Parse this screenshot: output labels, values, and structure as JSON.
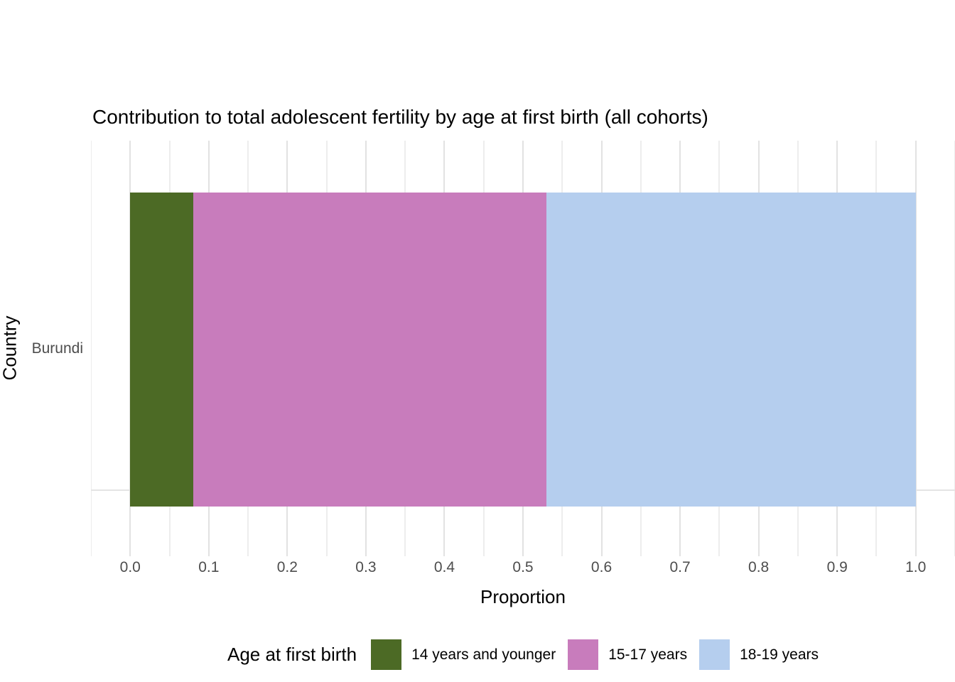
{
  "chart_data": {
    "type": "bar",
    "orientation": "horizontal",
    "stacked": true,
    "title": "Contribution to total adolescent fertility by age at first birth (all cohorts)",
    "xlabel": "Proportion",
    "ylabel": "Country",
    "categories": [
      "Burundi"
    ],
    "series": [
      {
        "name": "14 years and younger",
        "values": [
          0.08
        ],
        "color": "#4C6A25"
      },
      {
        "name": "15-17 years",
        "values": [
          0.45
        ],
        "color": "#C87CBC"
      },
      {
        "name": "18-19 years",
        "values": [
          0.47
        ],
        "color": "#B5CEEE"
      }
    ],
    "xlim": [
      -0.05,
      1.05
    ],
    "x_tick_values": [
      0.0,
      0.1,
      0.2,
      0.3,
      0.4,
      0.5,
      0.6,
      0.7,
      0.8,
      0.9,
      1.0
    ],
    "x_tick_labels": [
      "0.0",
      "0.1",
      "0.2",
      "0.3",
      "0.4",
      "0.5",
      "0.6",
      "0.7",
      "0.8",
      "0.9",
      "1.0"
    ],
    "x_minor_tick_values": [
      -0.05,
      0.05,
      0.15,
      0.25,
      0.35,
      0.45,
      0.55,
      0.65,
      0.75,
      0.85,
      0.95,
      1.05
    ],
    "legend_title": "Age at first birth",
    "legend_position": "bottom",
    "grid": true
  },
  "colors": {
    "grid_major": "#E2E2E2",
    "grid_minor": "#EDEDED",
    "tick_text": "#4D4D4D",
    "title_text": "#000000",
    "panel_background": "#FFFFFF"
  }
}
